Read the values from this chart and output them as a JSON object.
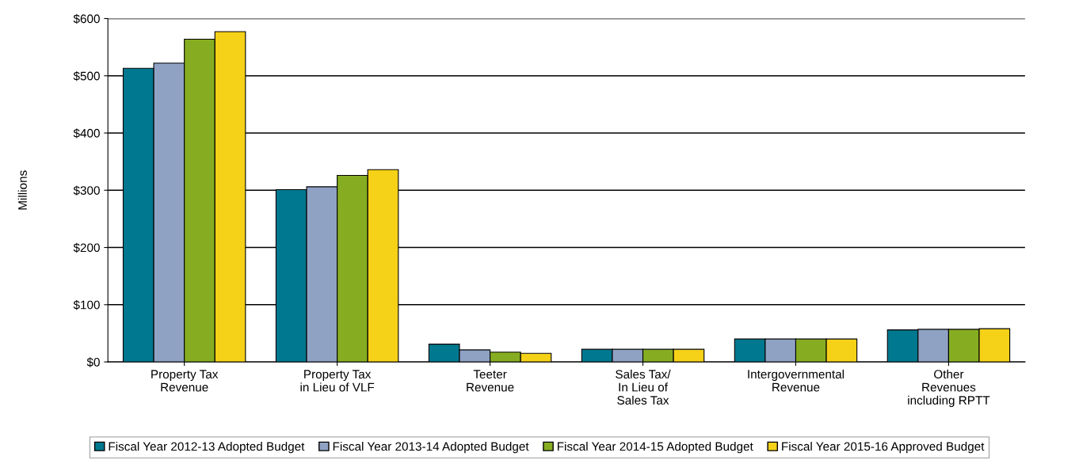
{
  "chart_data": {
    "type": "bar",
    "ylabel": "Millions",
    "categories": [
      "Property Tax\nRevenue",
      "Property Tax\nin Lieu of VLF",
      "Teeter\nRevenue",
      "Sales Tax/\nIn Lieu of\nSales Tax",
      "Intergovernmental\nRevenue",
      "Other\nRevenues\nincluding RPTT"
    ],
    "series": [
      {
        "name": "Fiscal Year 2012-13 Adopted Budget",
        "color": "#00788f",
        "values": [
          513,
          301,
          31,
          22,
          40,
          56
        ]
      },
      {
        "name": "Fiscal Year 2013-14 Adopted Budget",
        "color": "#8fa2c4",
        "values": [
          522,
          306,
          21,
          22,
          40,
          57
        ]
      },
      {
        "name": "Fiscal Year 2014-15 Adopted Budget",
        "color": "#86ad22",
        "values": [
          564,
          326,
          17,
          22,
          40,
          57
        ]
      },
      {
        "name": "Fiscal Year 2015-16 Approved Budget",
        "color": "#f5d117",
        "values": [
          577,
          336,
          15,
          22,
          40,
          58
        ]
      }
    ],
    "ylim": [
      0,
      600
    ],
    "yticks": [
      {
        "value": 0,
        "label": "$0"
      },
      {
        "value": 100,
        "label": "$100"
      },
      {
        "value": 200,
        "label": "$200"
      },
      {
        "value": 300,
        "label": "$300"
      },
      {
        "value": 400,
        "label": "$400"
      },
      {
        "value": 500,
        "label": "$500"
      },
      {
        "value": 600,
        "label": "$600"
      }
    ],
    "grid": "y",
    "legend": "bottom"
  }
}
